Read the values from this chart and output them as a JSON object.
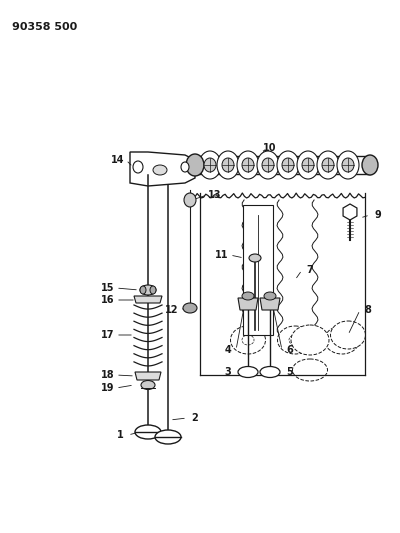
{
  "title": "90358 500",
  "bg_color": "#ffffff",
  "line_color": "#1a1a1a",
  "fig_width": 4.0,
  "fig_height": 5.33,
  "dpi": 100
}
